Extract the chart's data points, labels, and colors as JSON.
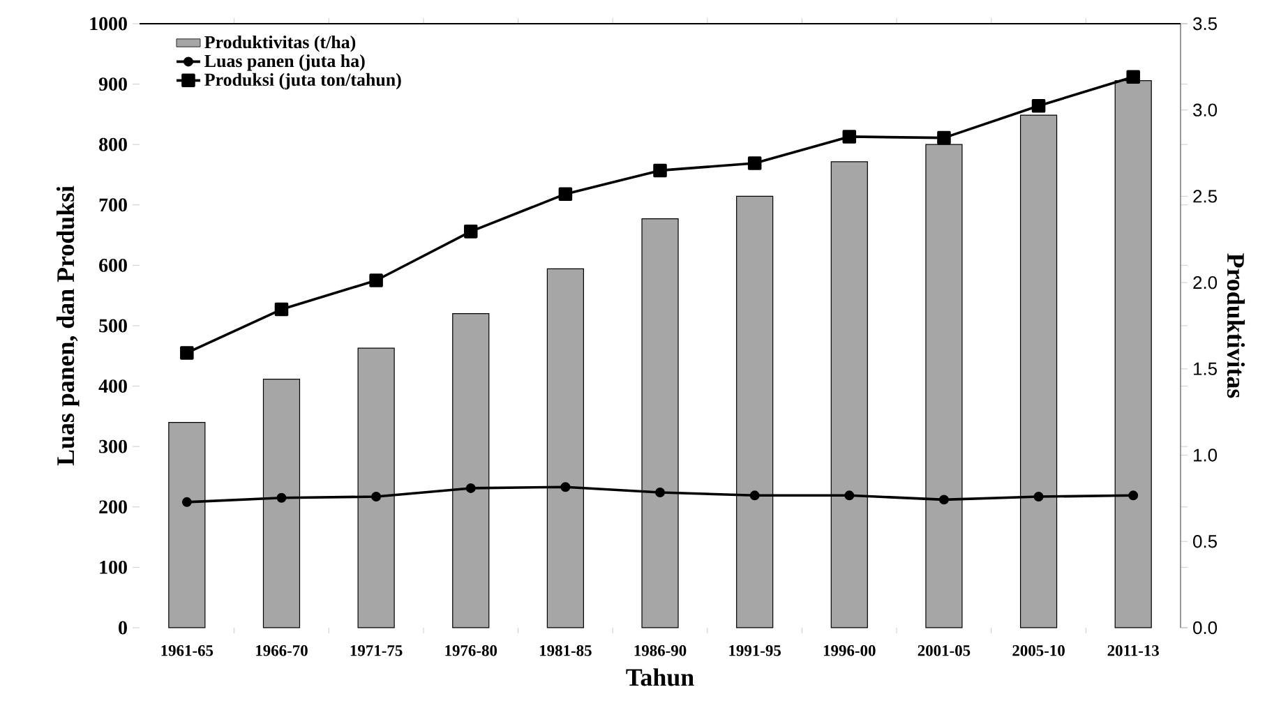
{
  "chart_data": {
    "type": "bar",
    "categories": [
      "1961-65",
      "1966-70",
      "1971-75",
      "1976-80",
      "1981-85",
      "1986-90",
      "1991-95",
      "1996-00",
      "2001-05",
      "2005-10",
      "2011-13"
    ],
    "series": [
      {
        "name": "Produktivitas (t/ha)",
        "axis": "y2",
        "color": "#a6a6a6",
        "values": [
          1.19,
          1.44,
          1.62,
          1.82,
          2.08,
          2.37,
          2.5,
          2.7,
          2.8,
          2.97,
          3.17
        ]
      },
      {
        "name": "Luas panen (juta ha)",
        "type": "line",
        "color": "#000000",
        "marker": "circle",
        "values": [
          208,
          215,
          217,
          231,
          233,
          224,
          219,
          219,
          212,
          217,
          219
        ]
      },
      {
        "name": "Produksi (juta ton/tahun)",
        "type": "line",
        "color": "#000000",
        "marker": "square",
        "values": [
          455,
          527,
          575,
          656,
          718,
          757,
          769,
          813,
          811,
          864,
          912
        ]
      }
    ],
    "xlabel": "Tahun",
    "ylabel": "Luas panen, dan Produksi",
    "y2label": "Produktivitas",
    "ylim": [
      0,
      1000
    ],
    "yticks": [
      0,
      100,
      200,
      300,
      400,
      500,
      600,
      700,
      800,
      900,
      1000
    ],
    "y2lim": [
      0,
      3.5
    ],
    "y2ticks": [
      {
        "value": 0,
        "label": "0.0"
      },
      {
        "value": 0.5,
        "label": "0.5"
      },
      {
        "value": 1,
        "label": "1.0"
      },
      {
        "value": 1.5,
        "label": "1.5"
      },
      {
        "value": 2,
        "label": "2.0"
      },
      {
        "value": 2.5,
        "label": "2.5"
      },
      {
        "value": 3,
        "label": "3.0"
      },
      {
        "value": 3.5,
        "label": "3.5"
      }
    ],
    "legend": "top left",
    "line_style": "solid"
  }
}
